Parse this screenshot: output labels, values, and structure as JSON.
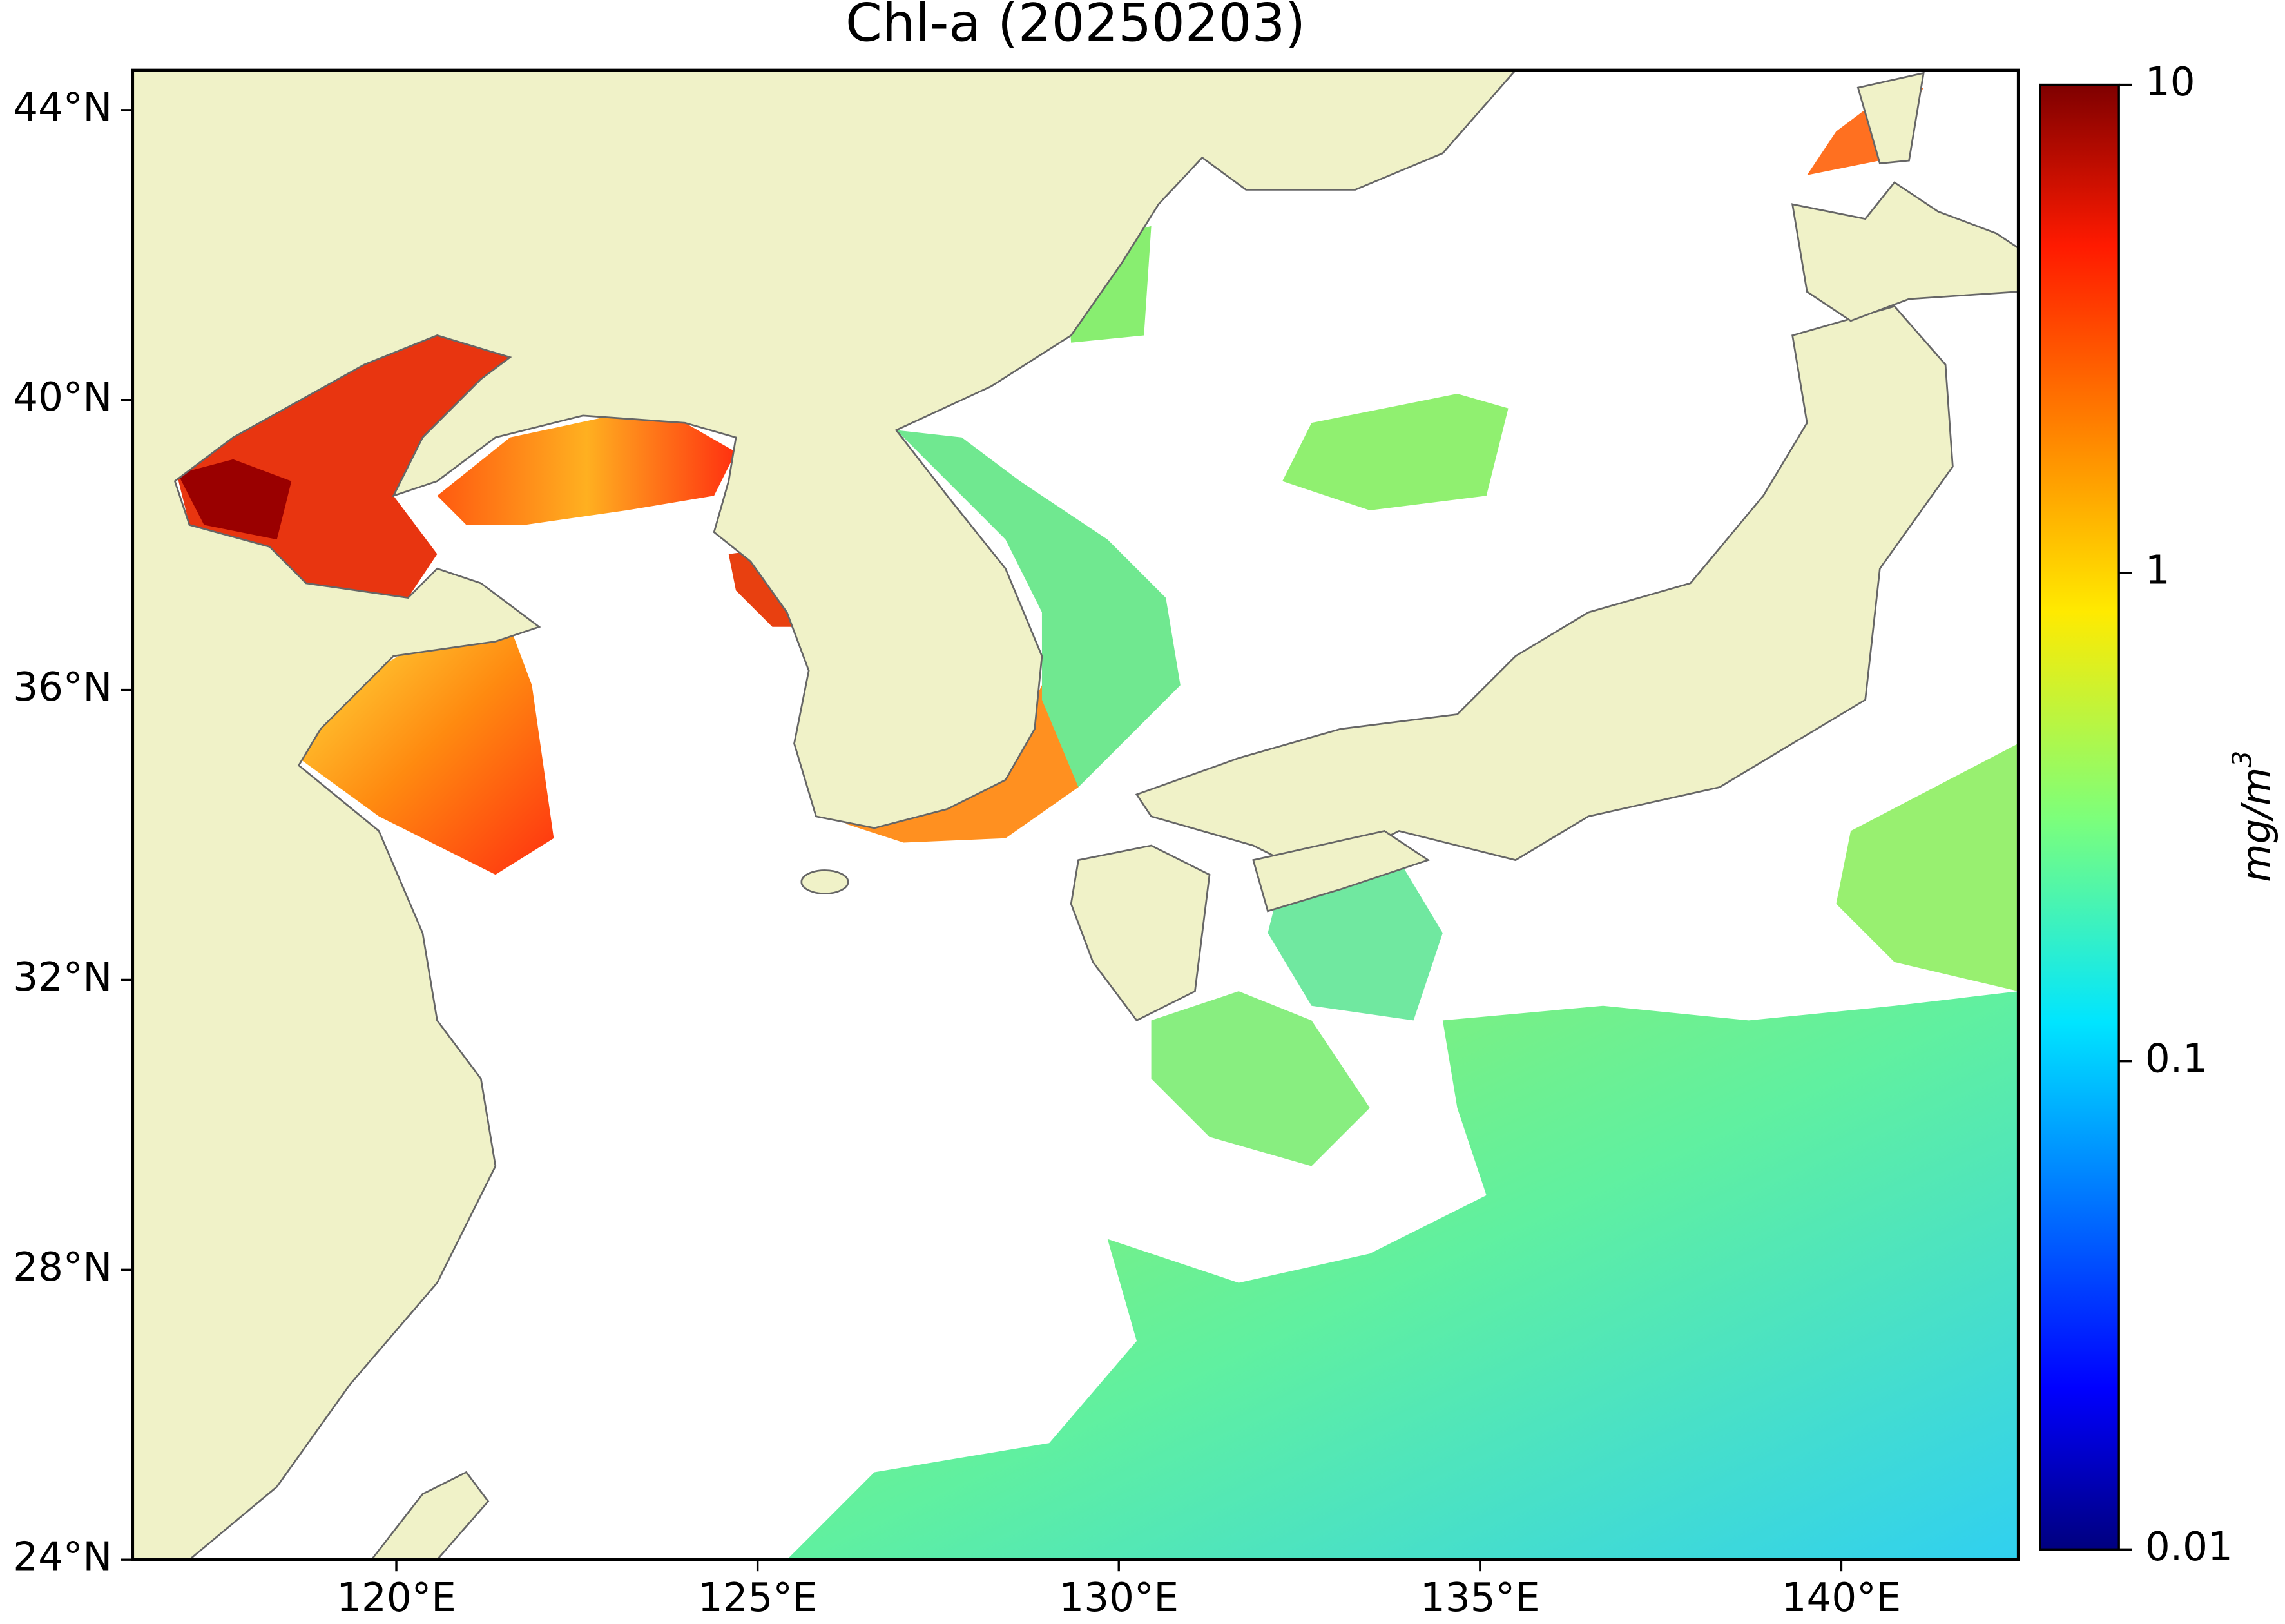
{
  "map": {
    "type": "map",
    "title": "Chl-a (20250203)",
    "xlim": [
      116.35,
      142.45
    ],
    "ylim": [
      24,
      44.55
    ],
    "xticks": [
      {
        "value": 120,
        "label": "120°E"
      },
      {
        "value": 125,
        "label": "125°E"
      },
      {
        "value": 130,
        "label": "130°E"
      },
      {
        "value": 135,
        "label": "135°E"
      },
      {
        "value": 140,
        "label": "140°E"
      }
    ],
    "yticks": [
      {
        "value": 24,
        "label": "24°N"
      },
      {
        "value": 28,
        "label": "28°N"
      },
      {
        "value": 32,
        "label": "32°N"
      },
      {
        "value": 36,
        "label": "36°N"
      },
      {
        "value": 40,
        "label": "40°N"
      },
      {
        "value": 44,
        "label": "44°N"
      }
    ],
    "colorbar": {
      "clim": [
        0.01,
        10
      ],
      "log": true,
      "colormap": "jet",
      "ticks": [
        0.01,
        0.1,
        1,
        10
      ],
      "label": {
        "base": "mg/m",
        "sup": "3"
      }
    }
  }
}
